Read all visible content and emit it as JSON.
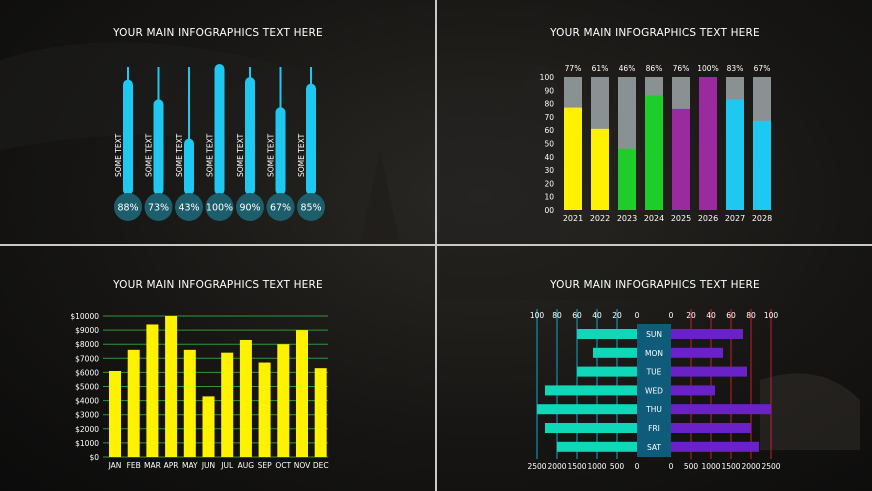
{
  "colors": {
    "cyan": "#1ec8f0",
    "bubble": "#1d5e6c",
    "gray": "#8a9192",
    "yellow": "#fff200",
    "green": "#1fcd2a",
    "purple": "#9b2aa0",
    "teal": "#0fd8b8",
    "violet": "#6a22c8",
    "gridGreen": "#2a9a36",
    "axisCyan": "#12a6c6",
    "axisRed": "#c4202a",
    "dayBox": "#0f5c7a"
  },
  "panels": [
    {
      "title": "YOUR MAIN INFOGRAPHICS TEXT HERE"
    },
    {
      "title": "YOUR MAIN INFOGRAPHICS TEXT HERE"
    },
    {
      "title": "YOUR MAIN INFOGRAPHICS TEXT HERE"
    },
    {
      "title": "YOUR MAIN INFOGRAPHICS TEXT HERE"
    }
  ],
  "chart_data": [
    {
      "type": "bar",
      "bar_label": "SOME TEXT",
      "values": [
        88,
        73,
        43,
        100,
        90,
        67,
        85
      ],
      "value_labels": [
        "88%",
        "73%",
        "43%",
        "100%",
        "90%",
        "67%",
        "85%"
      ],
      "ylim": [
        0,
        100
      ]
    },
    {
      "type": "bar",
      "stacked_to": 100,
      "categories": [
        "2021",
        "2022",
        "2023",
        "2024",
        "2025",
        "2026",
        "2027",
        "2028"
      ],
      "values": [
        77,
        61,
        46,
        86,
        76,
        100,
        83,
        67
      ],
      "value_labels": [
        "77%",
        "61%",
        "46%",
        "86%",
        "76%",
        "100%",
        "83%",
        "67%"
      ],
      "bar_colors": [
        "yellow",
        "yellow",
        "green",
        "green",
        "purple",
        "purple",
        "cyan",
        "cyan"
      ],
      "yticks": [
        "100",
        "90",
        "80",
        "70",
        "60",
        "50",
        "40",
        "30",
        "20",
        "10",
        "00"
      ],
      "ylim": [
        0,
        100
      ]
    },
    {
      "type": "bar",
      "categories": [
        "JAN",
        "FEB",
        "MAR",
        "APR",
        "MAY",
        "JUN",
        "JUL",
        "AUG",
        "SEP",
        "OCT",
        "NOV",
        "DEC"
      ],
      "values": [
        6100,
        7600,
        9400,
        10000,
        7600,
        4300,
        7400,
        8300,
        6700,
        8000,
        9000,
        6300
      ],
      "yticks": [
        "$0",
        "$1000",
        "$2000",
        "$3000",
        "$4000",
        "$5000",
        "$6000",
        "$7000",
        "$8000",
        "$9000",
        "$10000"
      ],
      "ylim": [
        0,
        10000
      ]
    },
    {
      "type": "bar",
      "orientation": "horizontal",
      "categories": [
        "SUN",
        "MON",
        "TUE",
        "WED",
        "THU",
        "FRI",
        "SAT"
      ],
      "series": [
        {
          "values": [
            1500,
            1100,
            1500,
            2300,
            2500,
            2300,
            2000
          ]
        },
        {
          "values": [
            1800,
            1300,
            1900,
            1100,
            2500,
            2000,
            2200
          ]
        }
      ],
      "top_ticks_left": [
        "100",
        "80",
        "60",
        "40",
        "20",
        "0"
      ],
      "top_ticks_right": [
        "0",
        "20",
        "40",
        "60",
        "80",
        "100"
      ],
      "bottom_ticks_left": [
        "2500",
        "2000",
        "1500",
        "1000",
        "500",
        "0"
      ],
      "bottom_ticks_right": [
        "0",
        "500",
        "1000",
        "1500",
        "2000",
        "2500"
      ],
      "xlim": [
        0,
        2500
      ]
    }
  ]
}
